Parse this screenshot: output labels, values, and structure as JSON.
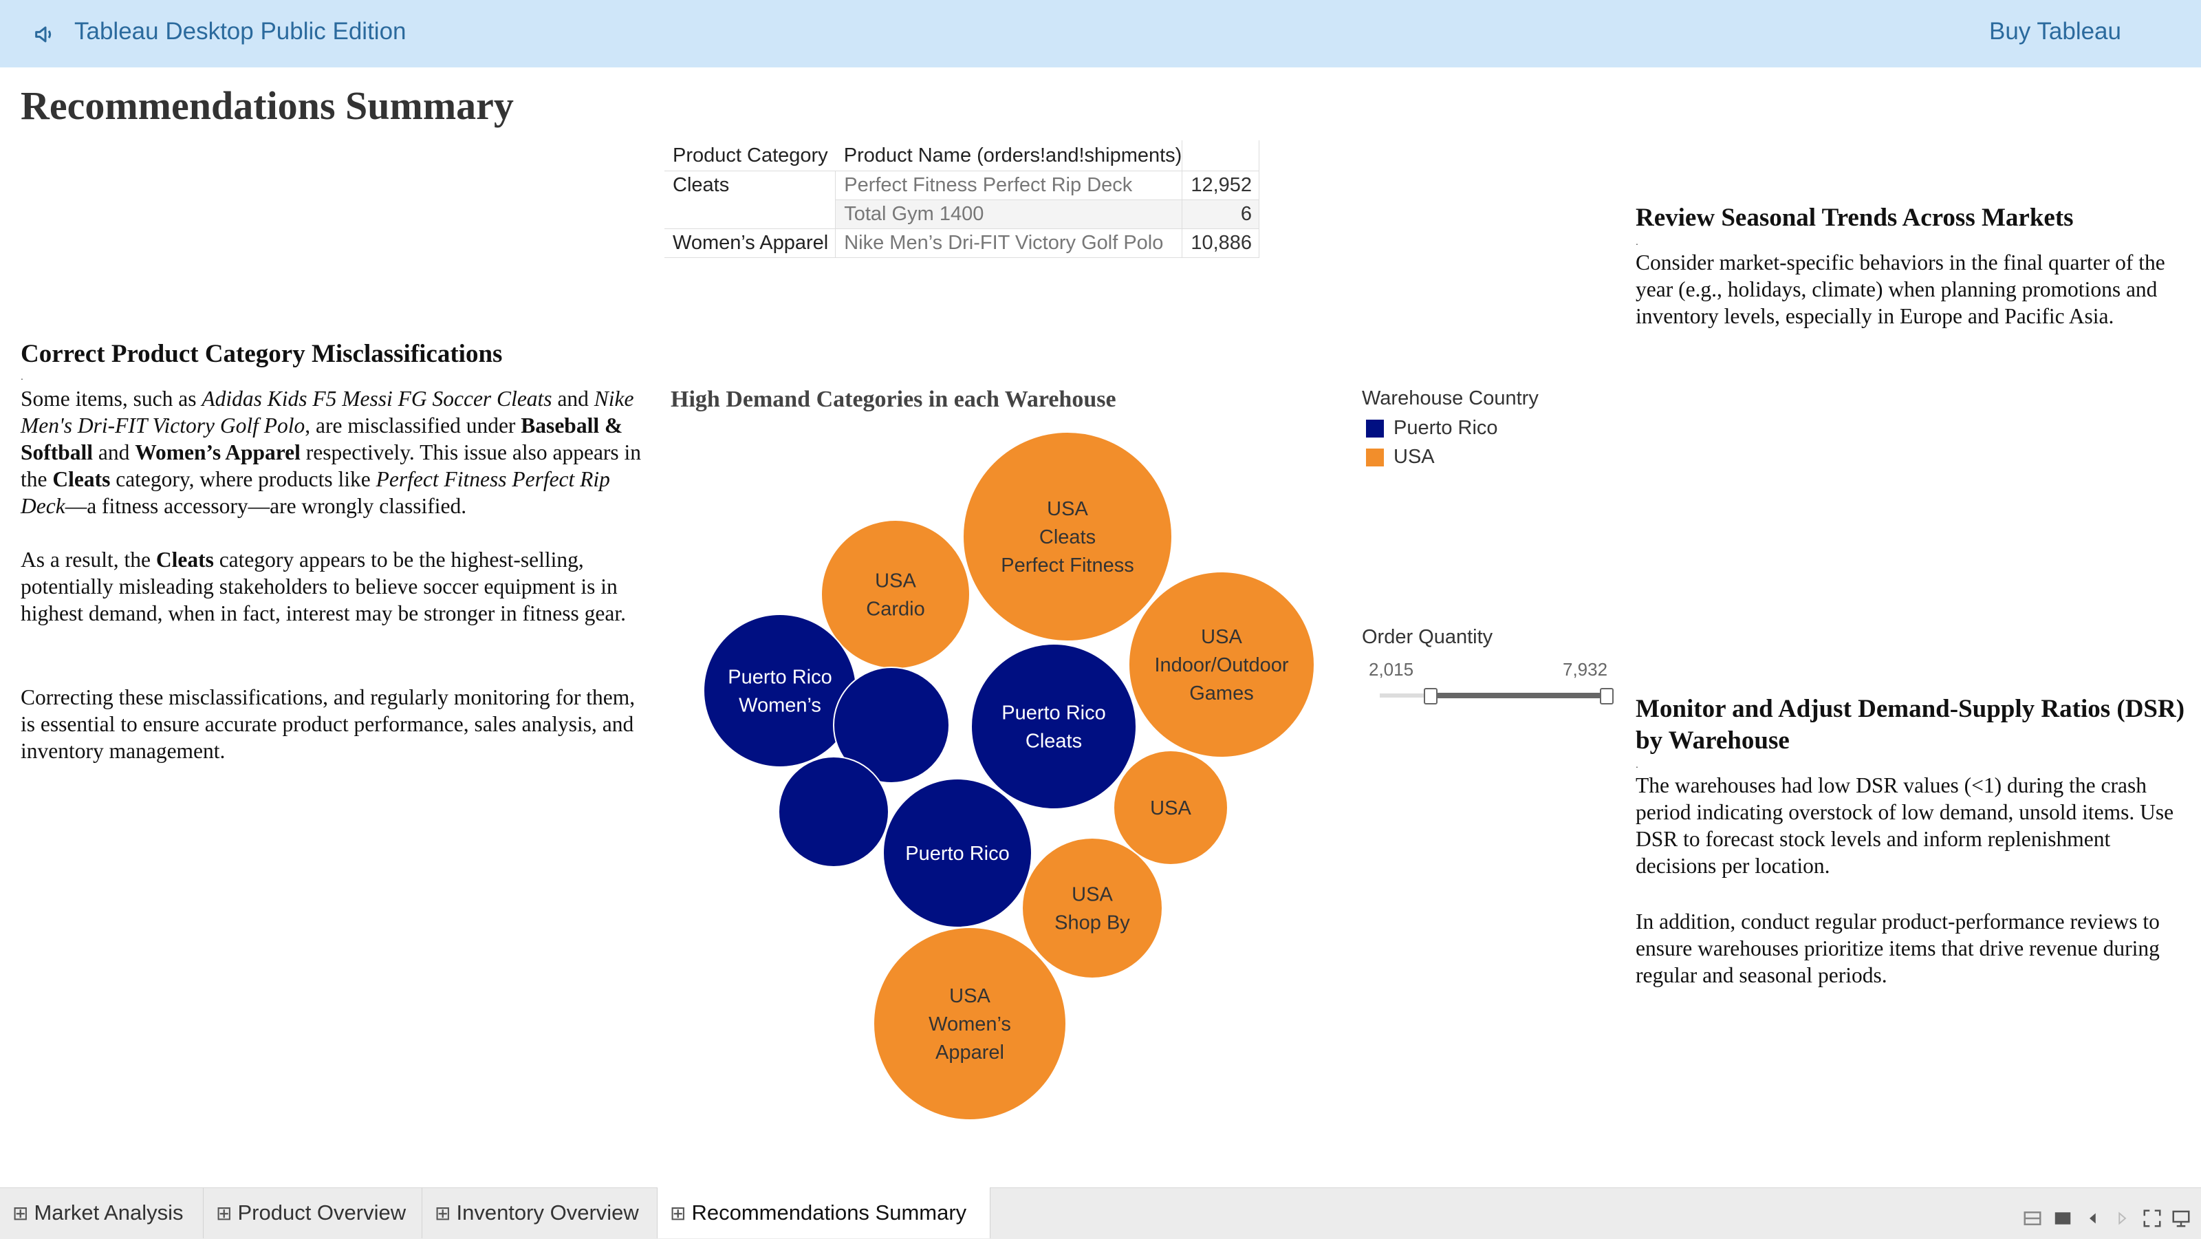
{
  "banner": {
    "title": "Tableau Desktop Public Edition",
    "buy_label": "Buy Tableau"
  },
  "page_title": "Recommendations Summary",
  "product_table": {
    "headers": [
      "Product Category",
      "Product Name (orders!and!shipments)"
    ],
    "rows": [
      {
        "category": "Cleats",
        "product": "Perfect Fitness Perfect Rip Deck",
        "value": "12,952"
      },
      {
        "category": "",
        "product": "Total Gym 1400",
        "value": "6"
      },
      {
        "category": "Women’s Apparel",
        "product": "Nike Men’s Dri-FIT Victory Golf Polo",
        "value": "10,886"
      }
    ]
  },
  "misclass": {
    "heading": "Correct Product Category Misclassifications",
    "p1": [
      {
        "t": "Some items, such as "
      },
      {
        "t": "Adidas Kids F5 Messi FG Soccer Cleats",
        "s": "i"
      },
      {
        "t": " and "
      },
      {
        "t": "Nike Men's Dri-FIT Victory Golf Polo",
        "s": "i"
      },
      {
        "t": ", are misclassified under "
      },
      {
        "t": "Baseball & Softball",
        "s": "b"
      },
      {
        "t": " and "
      },
      {
        "t": "Women’s Apparel",
        "s": "b"
      },
      {
        "t": " respectively. This issue also appears in the "
      },
      {
        "t": "Cleats",
        "s": "b"
      },
      {
        "t": " category, where products like "
      },
      {
        "t": "Perfect Fitness Perfect Rip Deck",
        "s": "i"
      },
      {
        "t": "—a fitness accessory—are wrongly classified."
      }
    ],
    "p2": [
      {
        "t": "As a result, the "
      },
      {
        "t": "Cleats",
        "s": "b"
      },
      {
        "t": " category appears to be the highest-selling, potentially misleading stakeholders to believe soccer equipment is in highest demand, when in fact, interest may be stronger in fitness gear."
      }
    ],
    "p3": "Correcting these misclassifications, and regularly monitoring for them, is essential to ensure accurate product performance, sales analysis, and inventory management."
  },
  "seasonal": {
    "heading": "Review Seasonal Trends Across Markets",
    "text": "Consider market-specific behaviors in the final quarter of the year (e.g., holidays, climate) when planning promotions and inventory levels, especially in Europe and Pacific Asia."
  },
  "dsr": {
    "heading": "Monitor and Adjust Demand-Supply Ratios (DSR) by Warehouse",
    "p1": "The warehouses had low DSR values (<1) during the crash period indicating overstock of low demand, unsold items. Use DSR to forecast stock levels and inform replenishment decisions per location.",
    "p2": "In addition, conduct regular product-performance reviews to ensure warehouses prioritize items that drive revenue during regular and seasonal periods."
  },
  "chart_data": {
    "type": "bubble",
    "title": "High Demand Categories in each Warehouse",
    "legend_title": "Warehouse Country",
    "legend": [
      {
        "name": "Puerto Rico",
        "color": "#000f82"
      },
      {
        "name": "USA",
        "color": "#f28e2b"
      }
    ],
    "bubbles": [
      {
        "country": "USA",
        "lines": [
          "USA",
          "Cleats",
          "Perfect Fitness"
        ],
        "color": "#f28e2b"
      },
      {
        "country": "USA",
        "lines": [
          "USA",
          "Cardio"
        ],
        "color": "#f28e2b"
      },
      {
        "country": "USA",
        "lines": [
          "USA",
          "Indoor/Outdoor",
          "Games"
        ],
        "color": "#f28e2b"
      },
      {
        "country": "Puerto Rico",
        "lines": [
          "Puerto Rico",
          "Women’s"
        ],
        "color": "#000f82"
      },
      {
        "country": "Puerto Rico",
        "lines": [],
        "color": "#000f82"
      },
      {
        "country": "Puerto Rico",
        "lines": [
          "Puerto Rico",
          "Cleats"
        ],
        "color": "#000f82"
      },
      {
        "country": "USA",
        "lines": [
          "USA"
        ],
        "color": "#f28e2b"
      },
      {
        "country": "Puerto Rico",
        "lines": [],
        "color": "#000f82"
      },
      {
        "country": "Puerto Rico",
        "lines": [
          "Puerto Rico"
        ],
        "color": "#000f82"
      },
      {
        "country": "USA",
        "lines": [
          "USA",
          "Shop By"
        ],
        "color": "#f28e2b"
      },
      {
        "country": "USA",
        "lines": [
          "USA",
          "Women’s",
          "Apparel"
        ],
        "color": "#f28e2b"
      }
    ]
  },
  "slider": {
    "title": "Order Quantity",
    "min": "2,015",
    "max": "7,932"
  },
  "tabs": [
    {
      "label": "Market Analysis",
      "active": false
    },
    {
      "label": "Product Overview",
      "active": false
    },
    {
      "label": "Inventory Overview",
      "active": false
    },
    {
      "label": "Recommendations Summary",
      "active": true
    }
  ],
  "controls": [
    "grid-view-icon",
    "present-icon",
    "prev-icon",
    "next-icon",
    "fullscreen-icon",
    "share-icon"
  ]
}
